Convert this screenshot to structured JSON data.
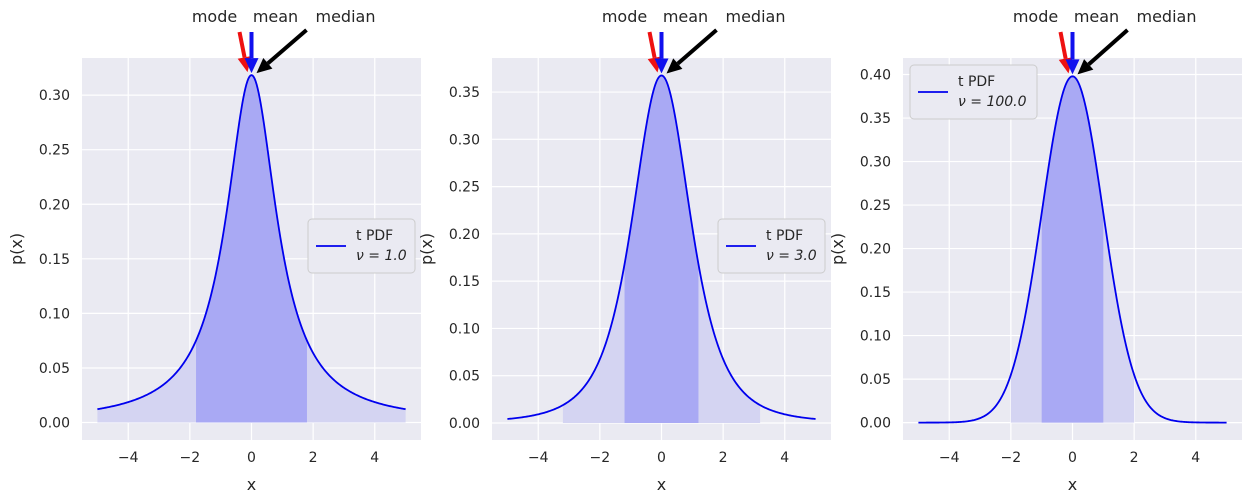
{
  "chart_data": [
    {
      "type": "line",
      "xlabel": "x",
      "ylabel": "p(x)",
      "xlim": [
        -5.5,
        5.5
      ],
      "ylim": [
        -0.016,
        0.334
      ],
      "xticks": [
        -4,
        -2,
        0,
        2,
        4
      ],
      "yticks": [
        0.0,
        0.05,
        0.1,
        0.15,
        0.2,
        0.25,
        0.3
      ],
      "y_tick_labels": [
        "0.00",
        "0.05",
        "0.10",
        "0.15",
        "0.20",
        "0.25",
        "0.30"
      ],
      "x_tick_labels": [
        "−4",
        "−2",
        "0",
        "2",
        "4"
      ],
      "grid": true,
      "legend": {
        "placement": "center-right",
        "line1": "t PDF",
        "line2": "ν = 1.0"
      },
      "df": 1.0,
      "x_range": [
        -5,
        5
      ],
      "shaded_light": [
        -5,
        5
      ],
      "shaded_dark": [
        -1.8,
        1.8
      ],
      "series": [
        {
          "name": "t PDF ν = 1.0",
          "x": [
            -5,
            -4,
            -3,
            -2,
            -1.5,
            -1,
            -0.5,
            0,
            0.5,
            1,
            1.5,
            2,
            3,
            4,
            5
          ],
          "values": [
            0.0122,
            0.0187,
            0.0318,
            0.0637,
            0.0979,
            0.1592,
            0.2546,
            0.3183,
            0.2546,
            0.1592,
            0.0979,
            0.0637,
            0.0318,
            0.0187,
            0.0122
          ]
        }
      ],
      "annotations": {
        "mode": "mode",
        "mean": "mean",
        "median": "median"
      }
    },
    {
      "type": "line",
      "xlabel": "x",
      "ylabel": "p(x)",
      "xlim": [
        -5.5,
        5.5
      ],
      "ylim": [
        -0.018,
        0.386
      ],
      "xticks": [
        -4,
        -2,
        0,
        2,
        4
      ],
      "yticks": [
        0.0,
        0.05,
        0.1,
        0.15,
        0.2,
        0.25,
        0.3,
        0.35
      ],
      "y_tick_labels": [
        "0.00",
        "0.05",
        "0.10",
        "0.15",
        "0.20",
        "0.25",
        "0.30",
        "0.35"
      ],
      "x_tick_labels": [
        "−4",
        "−2",
        "0",
        "2",
        "4"
      ],
      "grid": true,
      "legend": {
        "placement": "center-right",
        "line1": "t PDF",
        "line2": "ν = 3.0"
      },
      "df": 3.0,
      "x_range": [
        -5,
        5
      ],
      "shaded_light": [
        -3.2,
        3.2
      ],
      "shaded_dark": [
        -1.2,
        1.2
      ],
      "series": [
        {
          "name": "t PDF ν = 3.0",
          "x": [
            -5,
            -4,
            -3,
            -2,
            -1.5,
            -1,
            -0.5,
            0,
            0.5,
            1,
            1.5,
            2,
            3,
            4,
            5
          ],
          "values": [
            0.0042,
            0.0092,
            0.023,
            0.0675,
            0.12,
            0.2067,
            0.3125,
            0.3676,
            0.3125,
            0.2067,
            0.12,
            0.0675,
            0.023,
            0.0092,
            0.0042
          ]
        }
      ],
      "annotations": {
        "mode": "mode",
        "mean": "mean",
        "median": "median"
      }
    },
    {
      "type": "line",
      "xlabel": "x",
      "ylabel": "p(x)",
      "xlim": [
        -5.5,
        5.5
      ],
      "ylim": [
        -0.02,
        0.419
      ],
      "xticks": [
        -4,
        -2,
        0,
        2,
        4
      ],
      "yticks": [
        0.0,
        0.05,
        0.1,
        0.15,
        0.2,
        0.25,
        0.3,
        0.35,
        0.4
      ],
      "y_tick_labels": [
        "0.00",
        "0.05",
        "0.10",
        "0.15",
        "0.20",
        "0.25",
        "0.30",
        "0.35",
        "0.40"
      ],
      "x_tick_labels": [
        "−4",
        "−2",
        "0",
        "2",
        "4"
      ],
      "grid": true,
      "legend": {
        "placement": "upper-left",
        "line1": "t PDF",
        "line2": "ν = 100.0"
      },
      "df": 100.0,
      "x_range": [
        -5,
        5
      ],
      "shaded_light": [
        -2,
        2
      ],
      "shaded_dark": [
        -1,
        1
      ],
      "series": [
        {
          "name": "t PDF ν = 100.0",
          "x": [
            -5,
            -4,
            -3,
            -2,
            -1.5,
            -1,
            -0.5,
            0,
            0.5,
            1,
            1.5,
            2,
            3,
            4,
            5
          ],
          "values": [
            1e-05,
            0.0002,
            0.0048,
            0.0544,
            0.1289,
            0.2405,
            0.3514,
            0.3979,
            0.3514,
            0.2405,
            0.1289,
            0.0544,
            0.0048,
            0.0002,
            1e-05
          ]
        }
      ],
      "annotations": {
        "mode": "mode",
        "mean": "mean",
        "median": "median"
      }
    }
  ],
  "colors": {
    "axes_bg": "#eaeaf2",
    "grid": "#ffffff",
    "line": "#0000ee",
    "shade_light": "#d4d4f2",
    "shade_dark": "#a9a9f4",
    "mode_arrow": "#ee1111",
    "mean_arrow": "#1111ee",
    "median_arrow": "#000000"
  }
}
